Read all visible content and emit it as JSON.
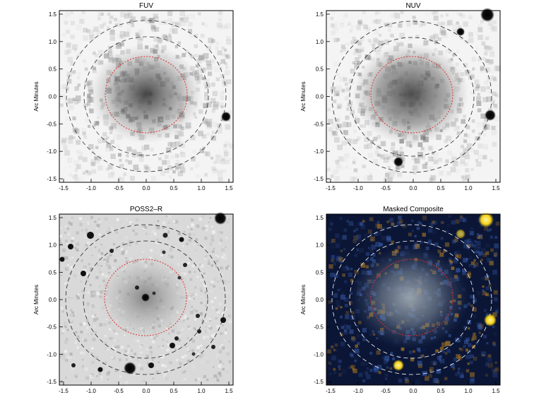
{
  "figure": {
    "y_axis_label": "Arc Minutes",
    "x_ticks": [
      "-1.5",
      "-1.0",
      "-0.5",
      "0.0",
      "0.5",
      "1.0",
      "1.5"
    ],
    "y_ticks": [
      "1.5",
      "1.0",
      "0.5",
      "0.0",
      "-0.5",
      "-1.0",
      "-1.5"
    ],
    "panels": [
      {
        "id": "fuv",
        "title": "FUV",
        "background": "#f4f4f4",
        "style": "noise"
      },
      {
        "id": "nuv",
        "title": "NUV",
        "background": "#f4f4f4",
        "style": "noise"
      },
      {
        "id": "poss",
        "title": "POSS2–R",
        "background": "#d9d9d9",
        "style": "optical"
      },
      {
        "id": "comp",
        "title": "Masked Composite",
        "background": "#0b1636",
        "style": "composite"
      }
    ],
    "colors": {
      "inner_ellipse": "#e03030",
      "outer_ellipse_dark": "#222222",
      "outer_ellipse_light": "#ffffff",
      "composite_star": "#f5d21a",
      "composite_blue": "#3a5fb0",
      "composite_orange": "#c8891e"
    }
  }
}
